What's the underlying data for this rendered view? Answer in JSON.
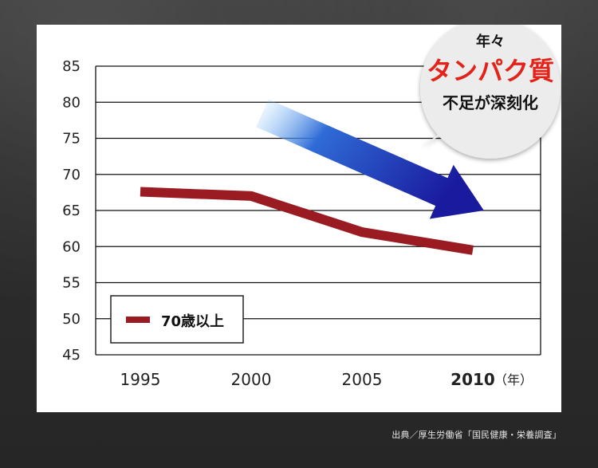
{
  "colors": {
    "line": "#9b1b22",
    "arrow_start": "#8fd0ff",
    "arrow_mid": "#2f6bd6",
    "arrow_end": "#1a1a9e",
    "bubble_highlight": "#e2231a"
  },
  "bubble": {
    "line1": "年々",
    "line2": "タンパク質",
    "line3": "不足が深刻化"
  },
  "source": "出典／厚生労働省「国民健康・栄養調査」",
  "chart_data": {
    "type": "line",
    "title": "",
    "xlabel": "",
    "ylabel": "",
    "x_unit": "（年）",
    "categories": [
      "1995",
      "2000",
      "2005",
      "2010"
    ],
    "ylim": [
      45,
      85
    ],
    "yticks": [
      45,
      50,
      55,
      60,
      65,
      70,
      75,
      80,
      85
    ],
    "grid": true,
    "legend_position": "bottom-left",
    "series": [
      {
        "name": "70歳以上",
        "points": [
          {
            "x": 1995,
            "y": 67.6
          },
          {
            "x": 2000,
            "y": 67.0
          },
          {
            "x": 2005,
            "y": 62.0
          },
          {
            "x": 2010,
            "y": 59.5
          }
        ]
      }
    ],
    "annotation_arrow": {
      "from_year": 2000.5,
      "from_value": 78.5,
      "to_year": 2010.5,
      "to_value": 65
    }
  }
}
